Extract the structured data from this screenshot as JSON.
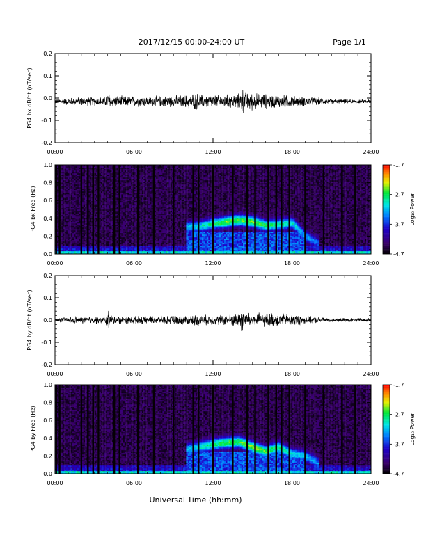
{
  "header": {
    "title": "2017/12/15  00:00-24:00 UT",
    "page": "Page 1/1"
  },
  "chart_data": [
    {
      "type": "line",
      "panel": "bx-waveform",
      "title": "",
      "xlabel": "",
      "ylabel": "PG4 bx dB/dt (nT/sec)",
      "xlim": [
        0,
        24
      ],
      "ylim": [
        -0.2,
        0.2
      ],
      "x_tick_labels": [
        "00:00",
        "06:00",
        "12:00",
        "18:00",
        "24:00"
      ],
      "y_tick_labels": [
        "0.2",
        "0.1",
        "0.0",
        "-0.1",
        "-0.2"
      ],
      "baseline": -0.015,
      "envelope": {
        "hours": [
          0,
          0.5,
          1.0,
          1.5,
          2.0,
          3.0,
          3.9,
          4.05,
          4.2,
          5.0,
          6.0,
          7.0,
          8.0,
          9.0,
          10.0,
          10.5,
          11.0,
          11.5,
          12.0,
          13.0,
          14.0,
          14.2,
          14.4,
          15.0,
          16.0,
          17.0,
          18.0,
          18.5,
          19.0,
          20.0,
          20.5,
          21.0,
          22.0,
          23.0,
          24.0
        ],
        "amplitude": [
          0.012,
          0.015,
          0.02,
          0.02,
          0.022,
          0.022,
          0.025,
          0.07,
          0.03,
          0.028,
          0.028,
          0.028,
          0.028,
          0.03,
          0.035,
          0.045,
          0.04,
          0.035,
          0.035,
          0.035,
          0.04,
          0.08,
          0.05,
          0.045,
          0.04,
          0.035,
          0.03,
          0.025,
          0.025,
          0.02,
          0.015,
          0.012,
          0.01,
          0.01,
          0.01
        ]
      }
    },
    {
      "type": "heatmap",
      "panel": "bx-spectrogram",
      "title": "",
      "xlabel": "",
      "ylabel": "PG4 bx Freq (Hz)",
      "xlim": [
        0,
        24
      ],
      "ylim": [
        0,
        1.0
      ],
      "x_tick_labels": [
        "00:00",
        "06:00",
        "12:00",
        "18:00",
        "24:00"
      ],
      "y_tick_labels": [
        "1.0",
        "0.8",
        "0.6",
        "0.4",
        "0.2",
        "0.0"
      ],
      "colorbar": {
        "label": "Log₁₀ Power",
        "range": [
          -4.7,
          -1.7
        ],
        "tick_labels": [
          "-1.7",
          "-2.7",
          "-3.7",
          "-4.7"
        ]
      },
      "data_gaps_hours": [
        0.1,
        0.35,
        2.0,
        2.5,
        2.9,
        3.3,
        4.5,
        4.9,
        6.3,
        7.5,
        9.0,
        10.5,
        10.9,
        12.0,
        13.5,
        14.6,
        15.2,
        16.2,
        16.8,
        17.2,
        17.8,
        19.0,
        20.4,
        21.8,
        22.8
      ],
      "enhanced_band": {
        "hours": [
          10.0,
          11.0,
          12.0,
          13.0,
          14.0,
          15.0,
          16.0,
          17.0,
          18.0,
          19.0,
          20.0
        ],
        "center_hz": [
          0.3,
          0.31,
          0.34,
          0.36,
          0.38,
          0.36,
          0.32,
          0.33,
          0.35,
          0.2,
          0.12
        ],
        "log_power": [
          -3.2,
          -3.0,
          -2.8,
          -2.5,
          -2.6,
          -2.5,
          -2.7,
          -2.8,
          -3.0,
          -3.3,
          -3.5
        ]
      }
    },
    {
      "type": "line",
      "panel": "by-waveform",
      "title": "",
      "xlabel": "",
      "ylabel": "PG4 by dB/dt (nT/sec)",
      "xlim": [
        0,
        24
      ],
      "ylim": [
        -0.2,
        0.2
      ],
      "x_tick_labels": [
        "00:00",
        "06:00",
        "12:00",
        "18:00",
        "24:00"
      ],
      "y_tick_labels": [
        "0.2",
        "0.1",
        "0.0",
        "-0.1",
        "-0.2"
      ],
      "baseline": 0.0,
      "envelope": {
        "hours": [
          0,
          0.5,
          1.0,
          1.5,
          2.0,
          3.0,
          3.9,
          4.05,
          4.2,
          5.0,
          6.0,
          7.0,
          8.0,
          9.0,
          10.0,
          10.5,
          11.0,
          11.5,
          12.0,
          13.0,
          14.0,
          14.2,
          14.4,
          15.0,
          16.0,
          17.0,
          18.0,
          18.5,
          19.0,
          20.0,
          20.5,
          21.0,
          22.0,
          23.0,
          24.0
        ],
        "amplitude": [
          0.01,
          0.012,
          0.015,
          0.018,
          0.018,
          0.018,
          0.02,
          0.06,
          0.025,
          0.02,
          0.02,
          0.02,
          0.02,
          0.022,
          0.025,
          0.028,
          0.028,
          0.025,
          0.025,
          0.028,
          0.035,
          0.09,
          0.04,
          0.035,
          0.035,
          0.035,
          0.03,
          0.025,
          0.02,
          0.015,
          0.012,
          0.01,
          0.01,
          0.01,
          0.01
        ]
      }
    },
    {
      "type": "heatmap",
      "panel": "by-spectrogram",
      "title": "",
      "xlabel": "Universal Time (hh:mm)",
      "ylabel": "PG4 by Freq (Hz)",
      "xlim": [
        0,
        24
      ],
      "ylim": [
        0,
        1.0
      ],
      "x_tick_labels": [
        "00:00",
        "06:00",
        "12:00",
        "18:00",
        "24:00"
      ],
      "y_tick_labels": [
        "1.0",
        "0.8",
        "0.6",
        "0.4",
        "0.2",
        "0.0"
      ],
      "colorbar": {
        "label": "Log₁₀ Power",
        "range": [
          -4.7,
          -1.7
        ],
        "tick_labels": [
          "-1.7",
          "-2.7",
          "-3.7",
          "-4.7"
        ]
      },
      "data_gaps_hours": [
        0.1,
        0.35,
        2.0,
        2.5,
        2.9,
        3.3,
        4.5,
        4.9,
        6.3,
        7.5,
        9.0,
        10.5,
        10.9,
        12.0,
        13.5,
        14.6,
        15.2,
        16.2,
        16.8,
        17.2,
        17.8,
        19.0,
        20.4,
        21.8,
        22.8
      ],
      "enhanced_band": {
        "hours": [
          10.0,
          11.0,
          12.0,
          13.0,
          14.0,
          15.0,
          16.0,
          17.0,
          18.0,
          19.0,
          20.0
        ],
        "center_hz": [
          0.28,
          0.3,
          0.33,
          0.35,
          0.36,
          0.3,
          0.25,
          0.3,
          0.22,
          0.2,
          0.12
        ],
        "log_power": [
          -3.2,
          -3.0,
          -2.8,
          -2.6,
          -2.6,
          -2.4,
          -2.6,
          -2.8,
          -3.0,
          -3.2,
          -3.4
        ]
      }
    }
  ]
}
